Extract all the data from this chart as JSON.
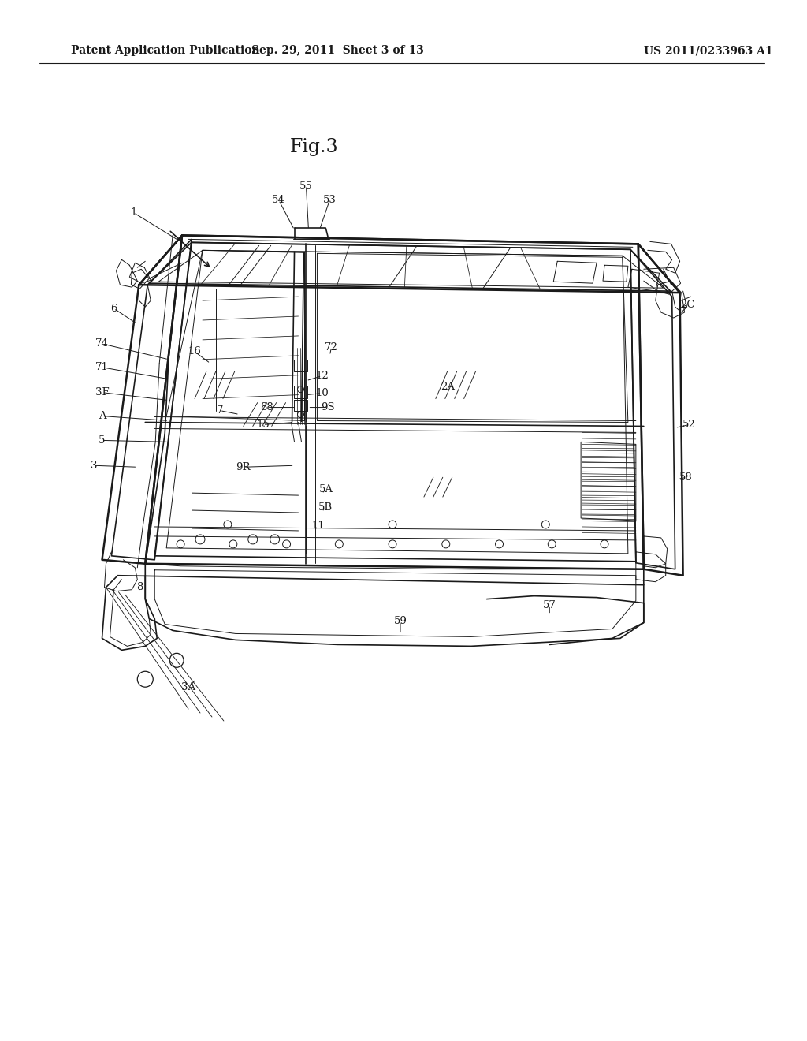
{
  "background_color": "#ffffff",
  "header_left": "Patent Application Publication",
  "header_mid": "Sep. 29, 2011  Sheet 3 of 13",
  "header_right": "US 2011/0233963 A1",
  "fig_label": "Fig.3",
  "header_fontsize": 10.5,
  "fig_label_fontsize": 17,
  "page_width": 10.24,
  "page_height": 13.2
}
